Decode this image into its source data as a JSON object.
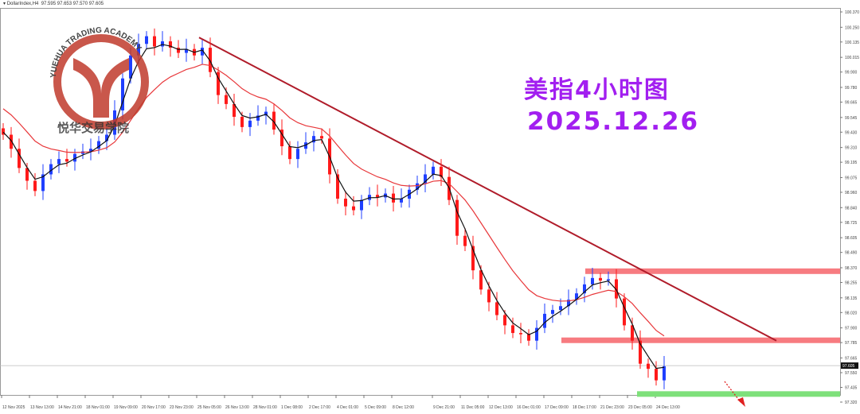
{
  "header": {
    "symbol": "DollarIndex,H4",
    "ohlc": "97.595 97.653 97.570 97.605"
  },
  "overlay": {
    "title": "美指4小时图",
    "date": "2025.12.26"
  },
  "logo": {
    "text_en": "YUEHUA TRADING ACADEMY",
    "text_cn": "悦华交易学院",
    "color": "#c0392b"
  },
  "colors": {
    "bull": "#1f3fff",
    "bear": "#ff1a1a",
    "ma_fast": "#111111",
    "ma_slow": "#e8373a",
    "trendline": "#b01c2a",
    "resistance_zone": "#f77b80",
    "support_zone": "#7ee07a",
    "title": "#a21ff0"
  },
  "chart_data": {
    "type": "candlestick",
    "ylim": [
      97.32,
      100.37
    ],
    "y_ticks": [
      "100.370",
      "100.250",
      "100.135",
      "100.015",
      "99.900",
      "99.780",
      "99.665",
      "99.545",
      "99.430",
      "99.310",
      "99.195",
      "99.075",
      "98.960",
      "98.840",
      "98.725",
      "98.605",
      "98.490",
      "98.370",
      "98.255",
      "98.135",
      "98.020",
      "97.900",
      "97.785",
      "97.665",
      "97.550",
      "97.435",
      "97.320"
    ],
    "current_price": "97.605",
    "x_ticks": [
      "12 Nov 2025",
      "13 Nov 13:00",
      "14 Nov 21:00",
      "18 Nov 01:00",
      "19 Nov 09:00",
      "20 Nov 17:00",
      "23 Nov 23:00",
      "25 Nov 05:00",
      "26 Nov 13:00",
      "28 Nov 01:00",
      "1 Dec 08:00",
      "2 Dec 17:00",
      "4 Dec 01:00",
      "5 Dec 09:00",
      "8 Dec 12:00",
      "9 Dec 21:00",
      "11 Dec 05:00",
      "12 Dec 13:00",
      "16 Dec 01:00",
      "17 Dec 09:00",
      "18 Dec 17:00",
      "21 Dec 23:00",
      "23 Dec 05:00",
      "24 Dec 13:00"
    ],
    "closes": [
      99.41,
      99.3,
      99.15,
      99.05,
      98.97,
      99.1,
      99.18,
      99.22,
      99.2,
      99.26,
      99.28,
      99.3,
      99.36,
      99.41,
      99.6,
      99.85,
      100.03,
      100.12,
      100.18,
      100.1,
      100.14,
      100.09,
      100.05,
      100.08,
      100.03,
      100.09,
      99.9,
      99.72,
      99.65,
      99.55,
      99.47,
      99.52,
      99.56,
      99.59,
      99.45,
      99.32,
      99.22,
      99.3,
      99.35,
      99.4,
      99.38,
      99.1,
      98.91,
      98.85,
      98.82,
      98.9,
      98.94,
      98.92,
      98.95,
      98.88,
      98.91,
      98.98,
      99.03,
      99.1,
      99.16,
      99.08,
      98.9,
      98.62,
      98.54,
      98.35,
      98.2,
      98.1,
      98.0,
      97.92,
      97.86,
      97.85,
      97.8,
      97.9,
      98.01,
      98.04,
      98.07,
      98.12,
      98.17,
      98.24,
      98.29,
      98.27,
      98.28,
      98.13,
      97.92,
      97.8,
      97.62,
      97.58,
      97.49,
      97.6
    ],
    "trendline": {
      "from": 100.17,
      "to": 97.8
    },
    "zones": [
      {
        "kind": "resistance",
        "price": 98.34
      },
      {
        "kind": "resistance",
        "price": 97.8
      },
      {
        "kind": "support",
        "price": 97.38
      }
    ],
    "moving_averages": [
      "fast",
      "slow"
    ],
    "grid": false
  }
}
